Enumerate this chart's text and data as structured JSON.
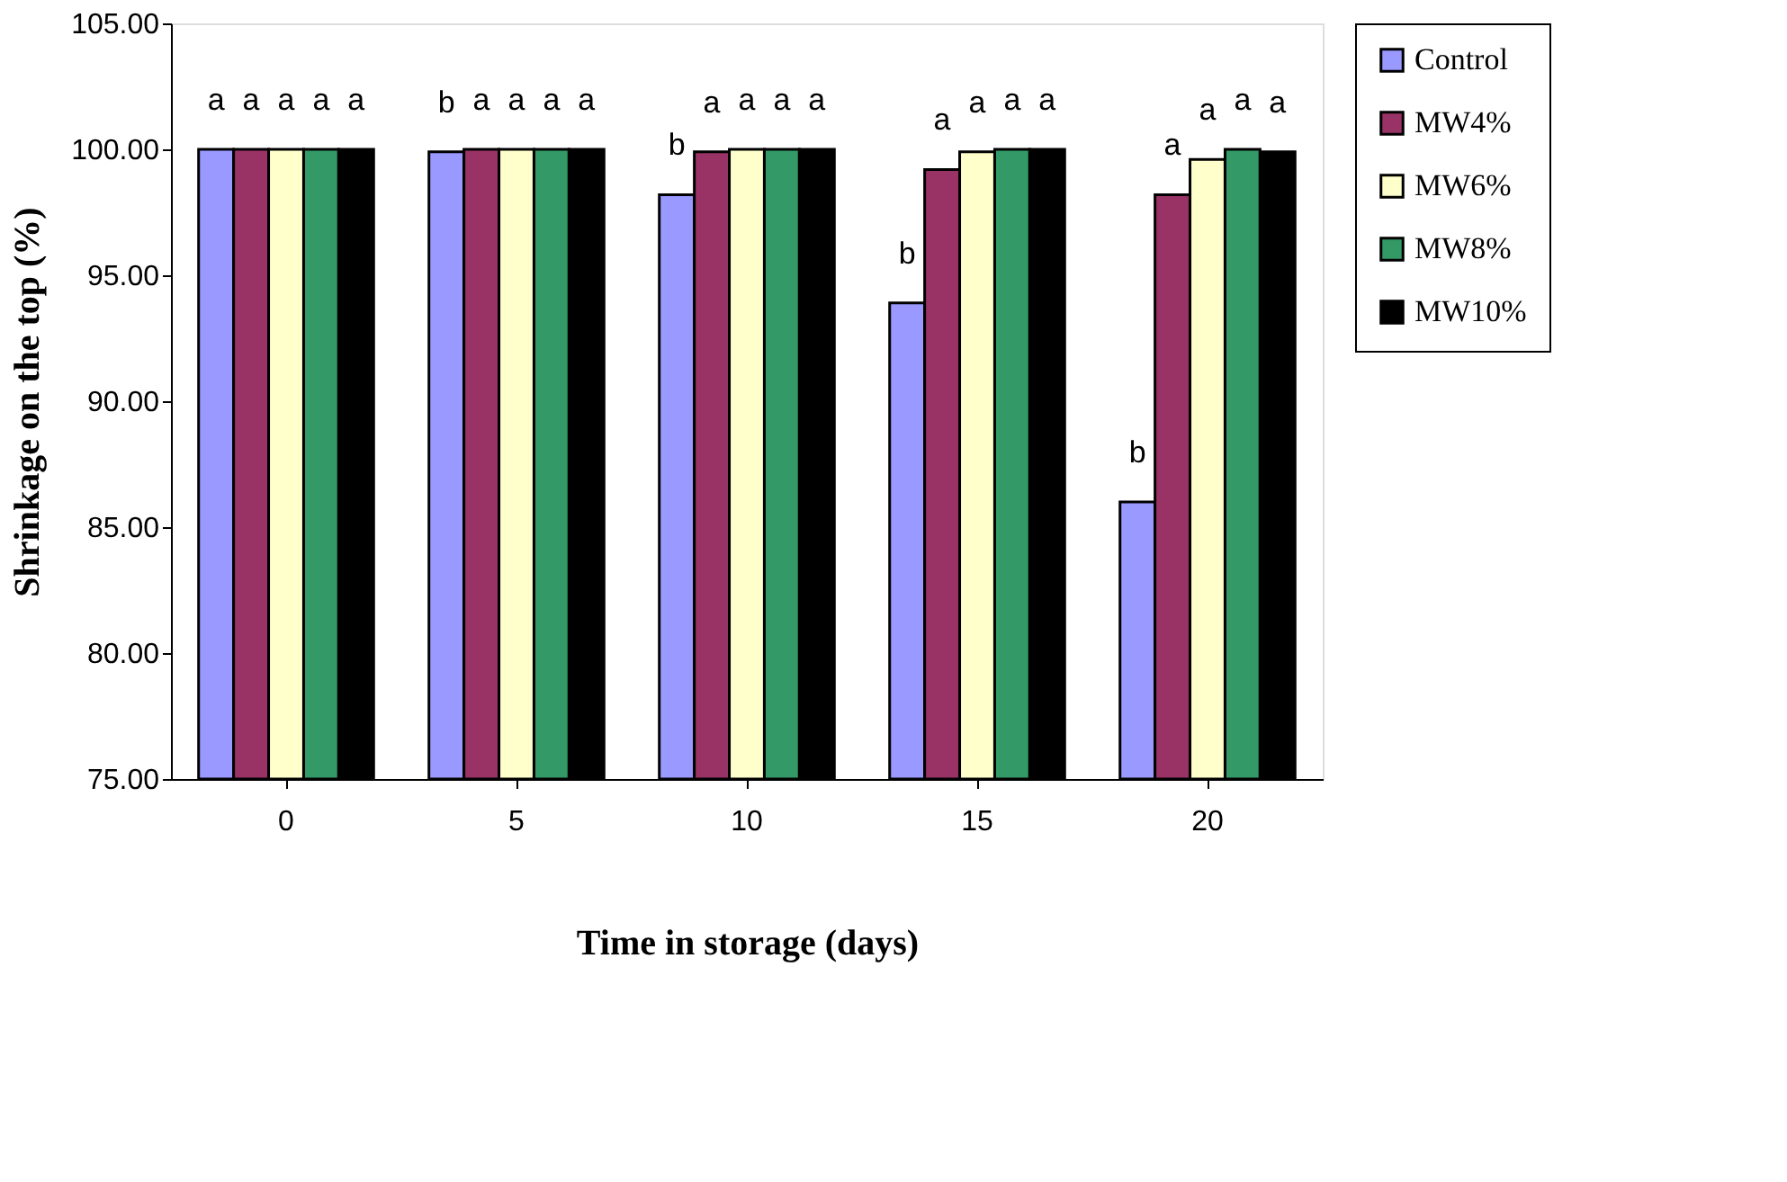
{
  "chart_data": {
    "type": "bar",
    "xlabel": "Time in storage (days)",
    "ylabel": "Shrinkage on the top (%)",
    "categories": [
      "0",
      "5",
      "10",
      "15",
      "20"
    ],
    "series": [
      {
        "name": "Control",
        "color": "#9999ff",
        "values": [
          100,
          99.9,
          98.2,
          93.9,
          86.0
        ],
        "value_labels": [
          "a",
          "b",
          "b",
          "b",
          "b"
        ]
      },
      {
        "name": "MW4%",
        "color": "#993366",
        "values": [
          100,
          100,
          99.9,
          99.2,
          98.2
        ],
        "value_labels": [
          "a",
          "a",
          "a",
          "a",
          "a"
        ]
      },
      {
        "name": "MW6%",
        "color": "#ffffcc",
        "values": [
          100,
          100,
          100,
          99.9,
          99.6
        ],
        "value_labels": [
          "a",
          "a",
          "a",
          "a",
          "a"
        ]
      },
      {
        "name": "MW8%",
        "color": "#339966",
        "values": [
          100,
          100,
          100,
          100,
          100
        ],
        "value_labels": [
          "a",
          "a",
          "a",
          "a",
          "a"
        ]
      },
      {
        "name": "MW10%",
        "color": "#000000",
        "values": [
          100,
          100,
          100,
          100,
          99.9
        ],
        "value_labels": [
          "a",
          "a",
          "a",
          "a",
          "a"
        ]
      }
    ],
    "ylim": [
      75,
      105
    ],
    "yticks": [
      {
        "value": 75,
        "label": "75.00"
      },
      {
        "value": 80,
        "label": "80.00"
      },
      {
        "value": 85,
        "label": "85.00"
      },
      {
        "value": 90,
        "label": "90.00"
      },
      {
        "value": 95,
        "label": "95.00"
      },
      {
        "value": 100,
        "label": "100.00"
      },
      {
        "value": 105,
        "label": "105.00"
      }
    ],
    "grid": false,
    "legend": "right"
  }
}
